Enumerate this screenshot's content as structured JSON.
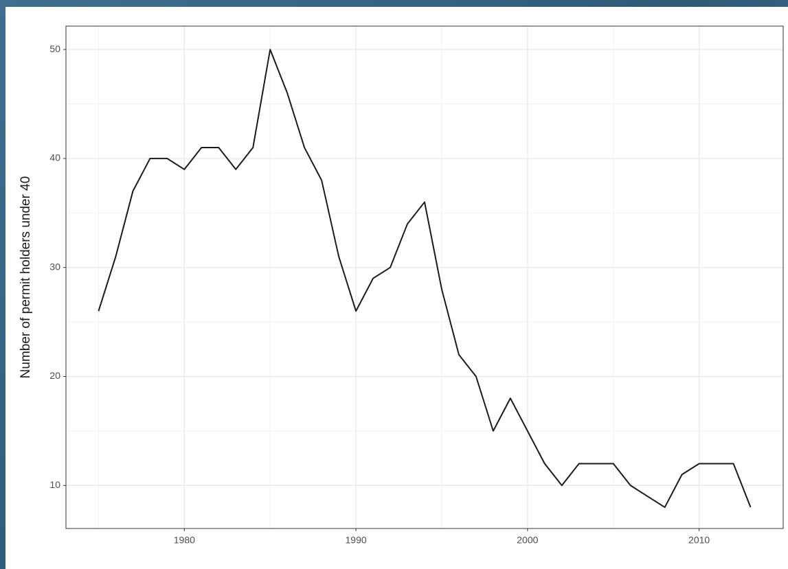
{
  "chart_data": {
    "type": "line",
    "y_label": "Number of permit holders under 40",
    "x": [
      1975,
      1976,
      1977,
      1978,
      1979,
      1980,
      1981,
      1982,
      1983,
      1984,
      1985,
      1986,
      1987,
      1988,
      1989,
      1990,
      1991,
      1992,
      1993,
      1994,
      1995,
      1996,
      1997,
      1998,
      1999,
      2000,
      2001,
      2002,
      2003,
      2004,
      2005,
      2006,
      2007,
      2008,
      2009,
      2010,
      2011,
      2012,
      2013
    ],
    "series": [
      {
        "color": "#1a1a1a",
        "values": [
          26,
          31,
          37,
          40,
          40,
          39,
          41,
          41,
          39,
          41,
          50,
          46,
          41,
          38,
          31,
          26,
          29,
          30,
          34,
          36,
          28,
          22,
          20,
          15,
          18,
          15,
          12,
          10,
          12,
          12,
          12,
          10,
          9,
          8,
          11,
          12,
          12,
          12,
          8
        ]
      }
    ],
    "xlim": [
      1973.1,
      2014.9
    ],
    "xticks": [
      1980,
      1990,
      2000,
      2010
    ],
    "ylim": [
      6.05,
      52.15
    ],
    "yticks": [
      10,
      20,
      30,
      40,
      50
    ],
    "grid": true
  }
}
